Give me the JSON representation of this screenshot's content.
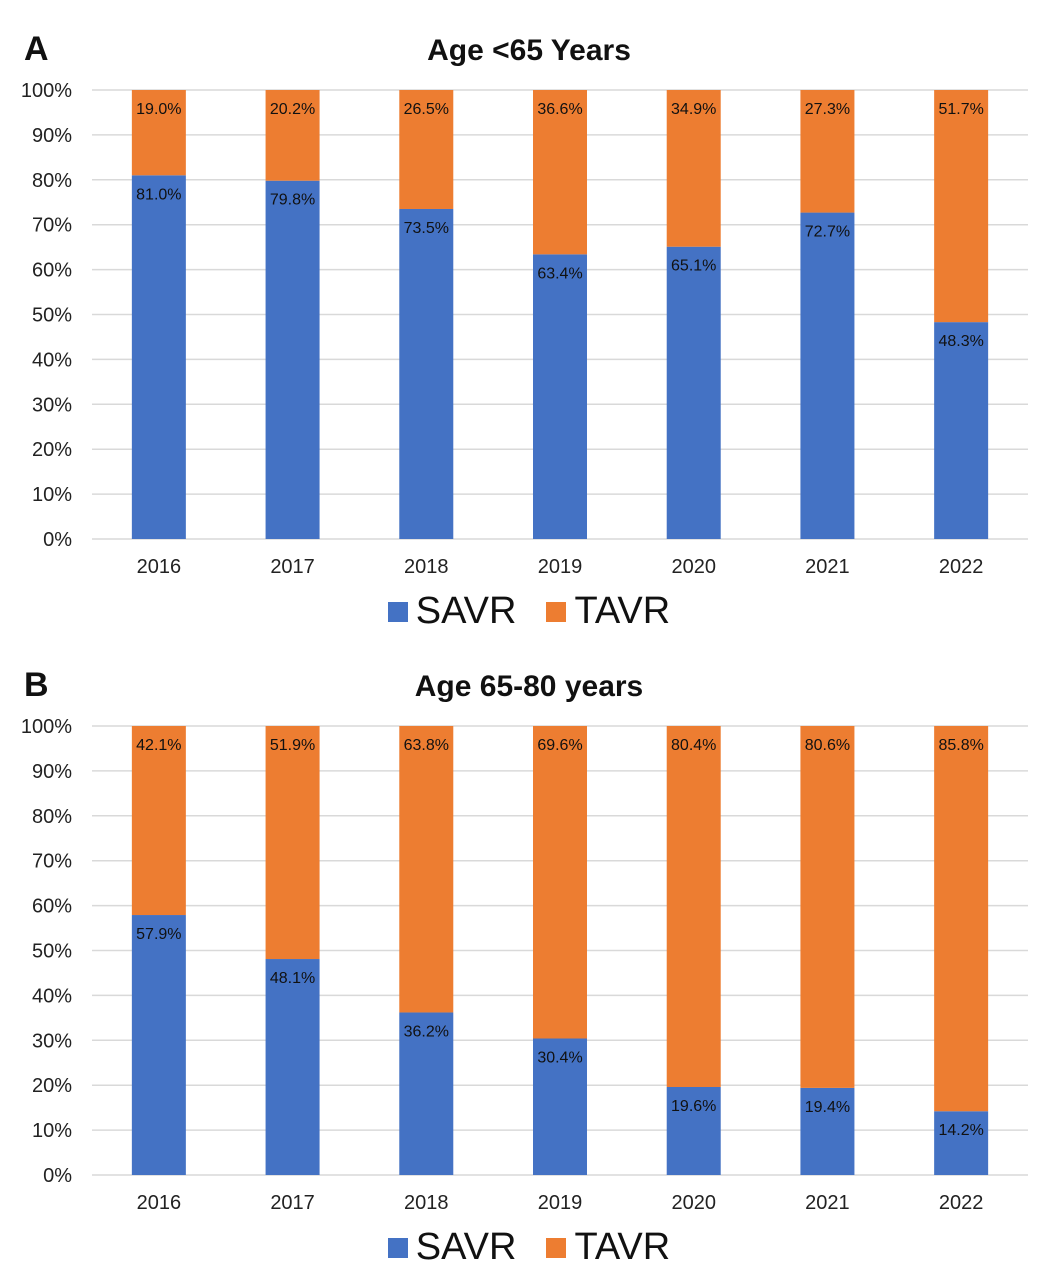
{
  "colors": {
    "SAVR": "#4472c4",
    "TAVR": "#ed7d31",
    "grid": "#d9d9d9"
  },
  "chart_data": [
    {
      "panel": "A",
      "type": "bar",
      "stacked": true,
      "title": "Age <65 Years",
      "categories": [
        "2016",
        "2017",
        "2018",
        "2019",
        "2020",
        "2021",
        "2022"
      ],
      "series": [
        {
          "name": "SAVR",
          "values": [
            81.0,
            79.8,
            73.5,
            63.4,
            65.1,
            72.7,
            48.3
          ]
        },
        {
          "name": "TAVR",
          "values": [
            19.0,
            20.2,
            26.5,
            36.6,
            34.9,
            27.3,
            51.7
          ]
        }
      ],
      "value_labels": {
        "SAVR": [
          "81.0%",
          "79.8%",
          "73.5%",
          "63.4%",
          "65.1%",
          "72.7%",
          "48.3%"
        ],
        "TAVR": [
          "19.0%",
          "20.2%",
          "26.5%",
          "36.6%",
          "34.9%",
          "27.3%",
          "51.7%"
        ]
      },
      "ylim": [
        0,
        100
      ],
      "y_ticks": [
        "0%",
        "10%",
        "20%",
        "30%",
        "40%",
        "50%",
        "60%",
        "70%",
        "80%",
        "90%",
        "100%"
      ],
      "grid": true,
      "legend": "bottom",
      "xlabel": "",
      "ylabel": ""
    },
    {
      "panel": "B",
      "type": "bar",
      "stacked": true,
      "title": "Age 65-80 years",
      "categories": [
        "2016",
        "2017",
        "2018",
        "2019",
        "2020",
        "2021",
        "2022"
      ],
      "series": [
        {
          "name": "SAVR",
          "values": [
            57.9,
            48.1,
            36.2,
            30.4,
            19.6,
            19.4,
            14.2
          ]
        },
        {
          "name": "TAVR",
          "values": [
            42.1,
            51.9,
            63.8,
            69.6,
            80.4,
            80.6,
            85.8
          ]
        }
      ],
      "value_labels": {
        "SAVR": [
          "57.9%",
          "48.1%",
          "36.2%",
          "30.4%",
          "19.6%",
          "19.4%",
          "14.2%"
        ],
        "TAVR": [
          "42.1%",
          "51.9%",
          "63.8%",
          "69.6%",
          "80.4%",
          "80.6%",
          "85.8%"
        ]
      },
      "ylim": [
        0,
        100
      ],
      "y_ticks": [
        "0%",
        "10%",
        "20%",
        "30%",
        "40%",
        "50%",
        "60%",
        "70%",
        "80%",
        "90%",
        "100%"
      ],
      "grid": true,
      "legend": "bottom",
      "xlabel": "",
      "ylabel": ""
    }
  ],
  "legend_labels": {
    "savr": "SAVR",
    "tavr": "TAVR"
  }
}
